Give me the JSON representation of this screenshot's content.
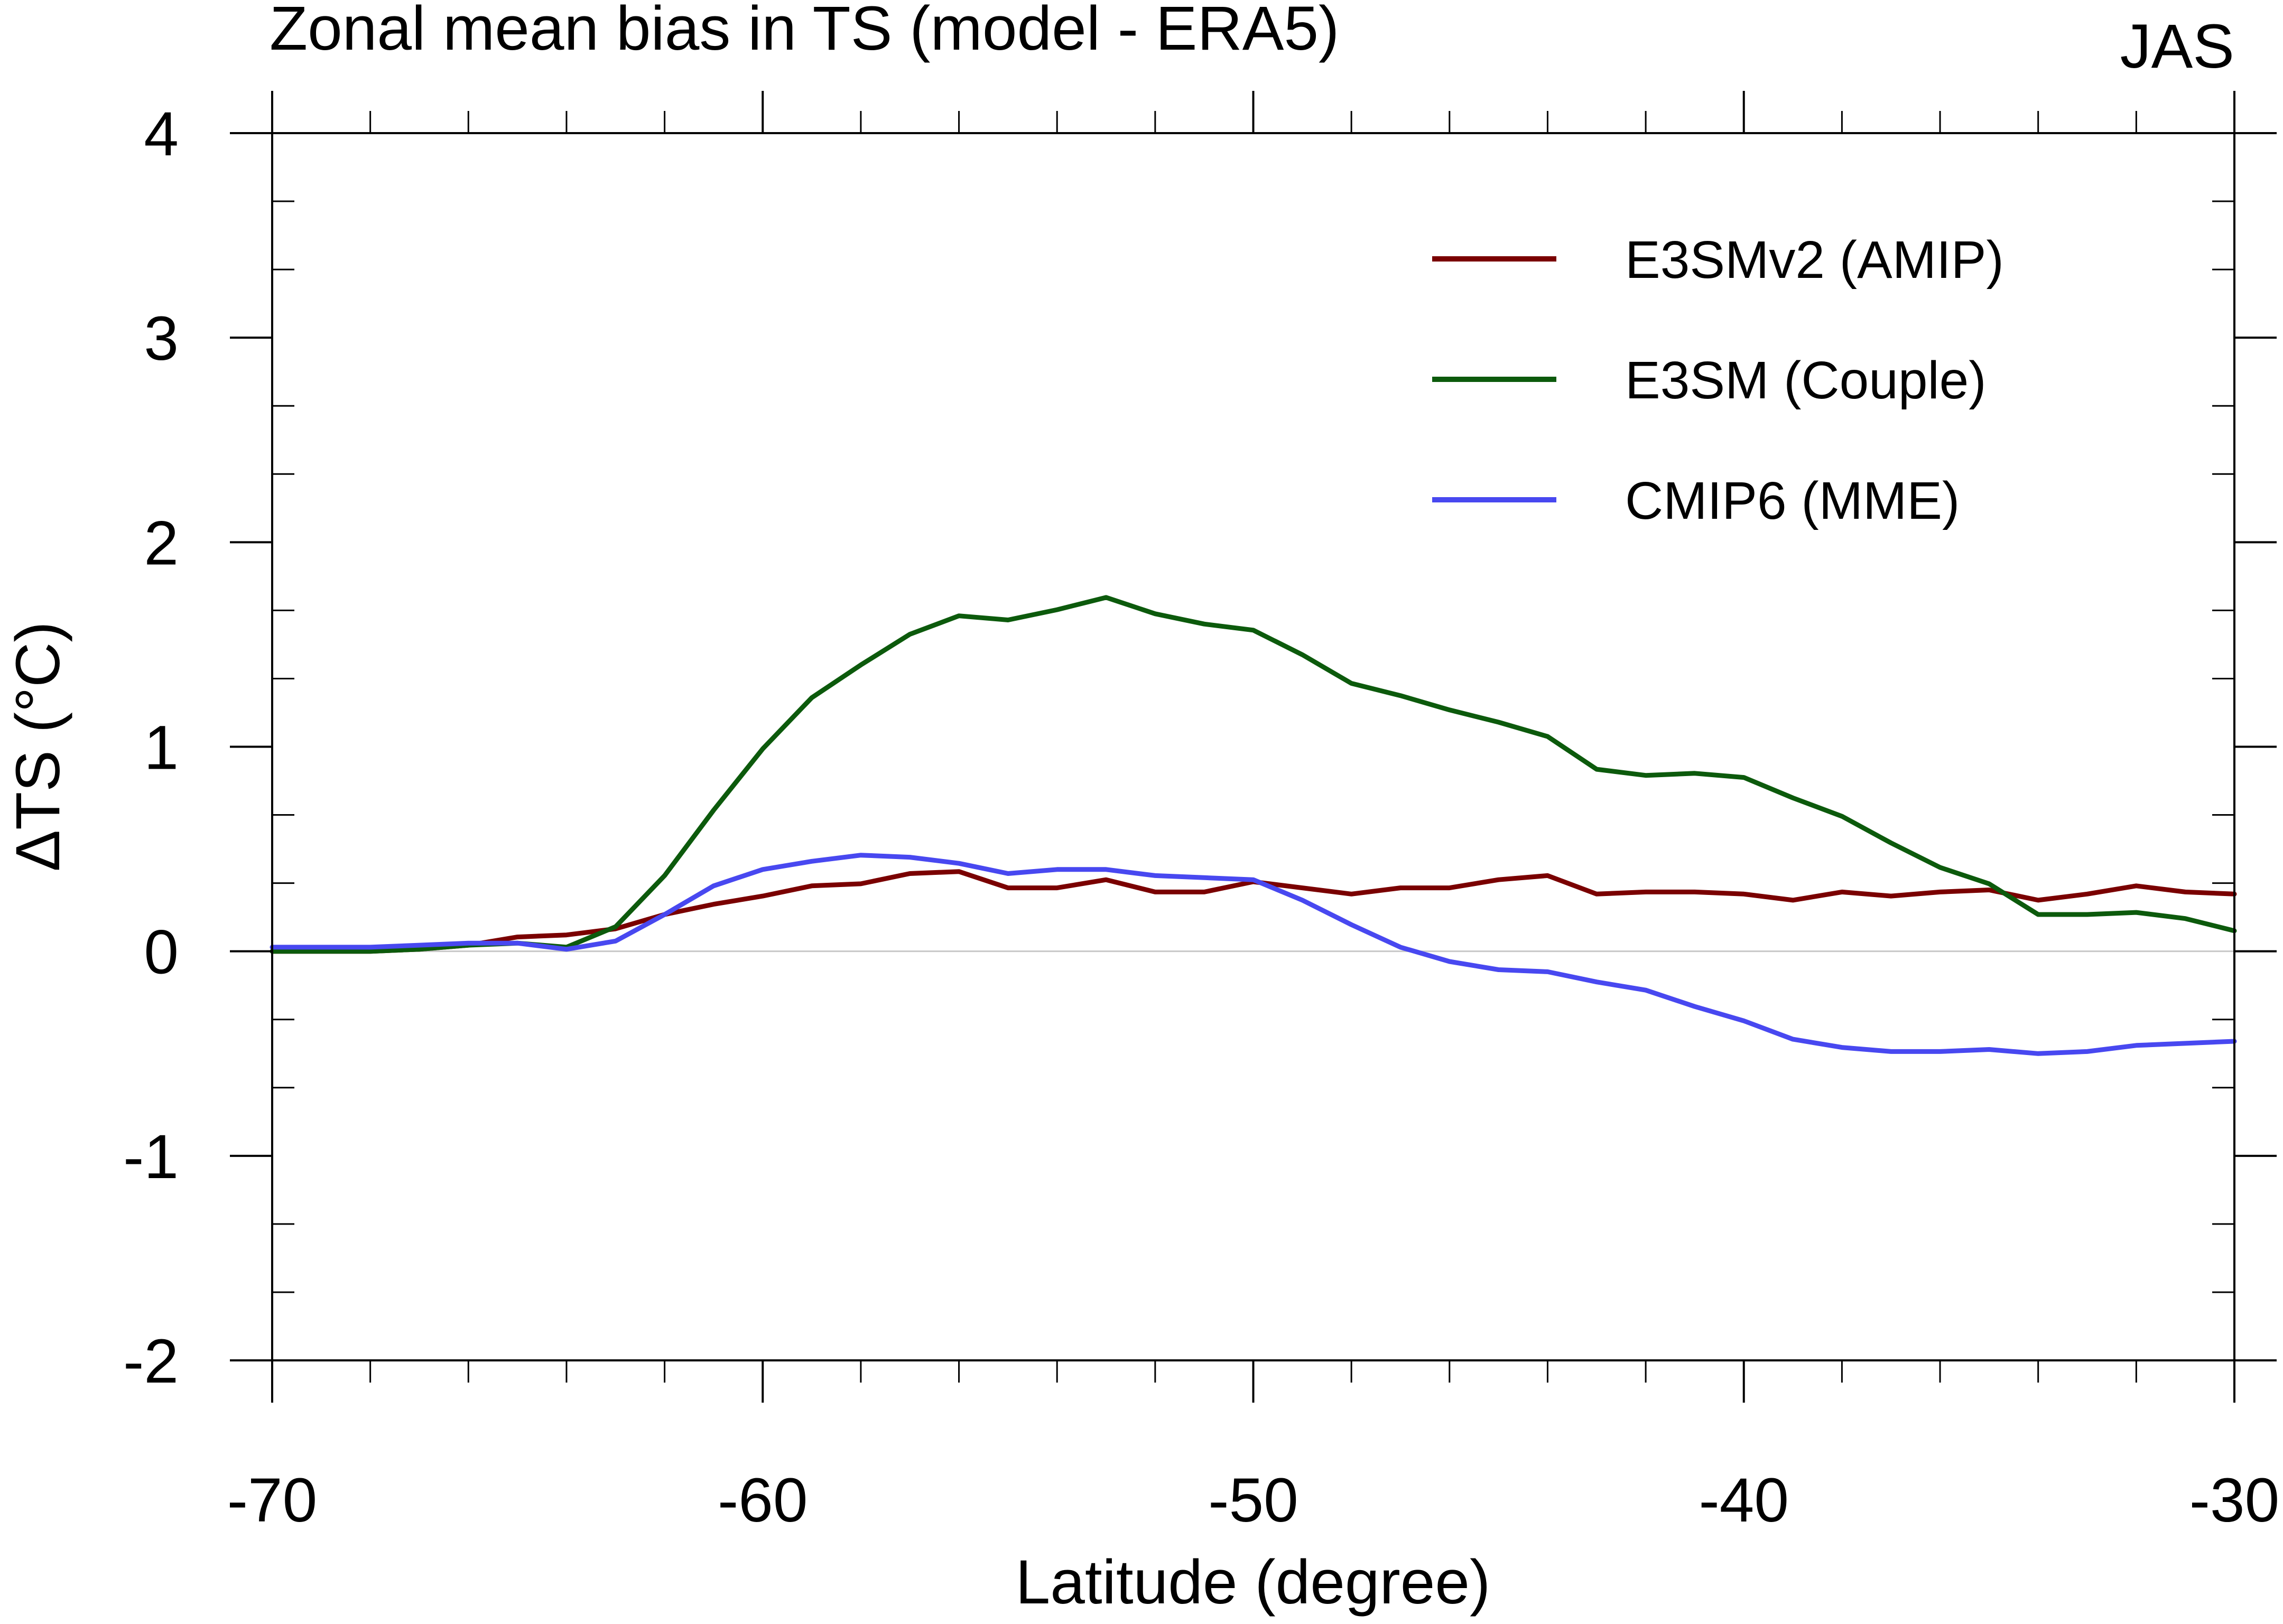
{
  "chart_data": {
    "type": "line",
    "title": "Zonal mean bias in TS (model - ERA5)",
    "season": "JAS",
    "xlabel": "Latitude (degree)",
    "ylabel": "ΔTS (°C)",
    "xlim": [
      -70,
      -30
    ],
    "ylim": [
      -2,
      4
    ],
    "xticks": [
      -70,
      -60,
      -50,
      -40,
      -30
    ],
    "yticks": [
      4,
      3,
      2,
      1,
      0,
      -1,
      -2
    ],
    "xminor_step": 2,
    "yminor_step": 0.333,
    "zero_line": true,
    "grid": false,
    "legend_position": "top-right",
    "x": [
      -70,
      -69,
      -68,
      -67,
      -66,
      -65,
      -64,
      -63,
      -62,
      -61,
      -60,
      -59,
      -58,
      -57,
      -56,
      -55,
      -54,
      -53,
      -52,
      -51,
      -50,
      -49,
      -48,
      -47,
      -46,
      -45,
      -44,
      -43,
      -42,
      -41,
      -40,
      -39,
      -38,
      -37,
      -36,
      -35,
      -34,
      -33,
      -32,
      -31,
      -30
    ],
    "series": [
      {
        "name": "E3SMv2 (AMIP)",
        "color": "#7a0000",
        "values": [
          0.0,
          0.0,
          0.0,
          0.01,
          0.03,
          0.07,
          0.08,
          0.11,
          0.18,
          0.23,
          0.27,
          0.32,
          0.33,
          0.38,
          0.39,
          0.31,
          0.31,
          0.35,
          0.29,
          0.29,
          0.34,
          0.31,
          0.28,
          0.31,
          0.31,
          0.35,
          0.37,
          0.28,
          0.29,
          0.29,
          0.28,
          0.25,
          0.29,
          0.27,
          0.29,
          0.3,
          0.25,
          0.28,
          0.32,
          0.29,
          0.28
        ]
      },
      {
        "name": "E3SM (Couple)",
        "color": "#0c5a0c",
        "values": [
          0.0,
          0.0,
          0.0,
          0.01,
          0.03,
          0.04,
          0.02,
          0.12,
          0.37,
          0.69,
          0.99,
          1.24,
          1.4,
          1.55,
          1.64,
          1.62,
          1.67,
          1.73,
          1.65,
          1.6,
          1.57,
          1.45,
          1.31,
          1.25,
          1.18,
          1.12,
          1.05,
          0.89,
          0.86,
          0.87,
          0.85,
          0.75,
          0.66,
          0.53,
          0.41,
          0.33,
          0.18,
          0.18,
          0.19,
          0.16,
          0.1
        ]
      },
      {
        "name": "CMIP6 (MME)",
        "color": "#4848f0",
        "values": [
          0.02,
          0.02,
          0.02,
          0.03,
          0.04,
          0.04,
          0.01,
          0.05,
          0.18,
          0.32,
          0.4,
          0.44,
          0.47,
          0.46,
          0.43,
          0.38,
          0.4,
          0.4,
          0.37,
          0.36,
          0.35,
          0.25,
          0.13,
          0.02,
          -0.05,
          -0.09,
          -0.1,
          -0.15,
          -0.19,
          -0.27,
          -0.34,
          -0.43,
          -0.47,
          -0.49,
          -0.49,
          -0.48,
          -0.5,
          -0.49,
          -0.46,
          -0.45,
          -0.44
        ]
      }
    ]
  }
}
